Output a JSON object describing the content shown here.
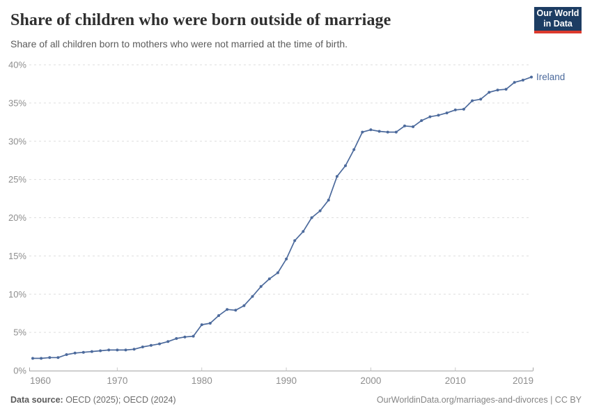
{
  "logo": {
    "line1": "Our World",
    "line2": "in Data",
    "bg_color": "#1d3d63",
    "accent_color": "#dc3a2e"
  },
  "footer": {
    "source_label": "Data source:",
    "source_value": " OECD (2025); OECD (2024)",
    "right_text": "OurWorldinData.org/marriages-and-divorces | CC BY"
  },
  "chart_data": {
    "type": "line",
    "title": "Share of children who were born outside of marriage",
    "subtitle": "Share of all children born to mothers who were not married at the time of birth.",
    "xlabel": "",
    "ylabel": "",
    "xlim": [
      1960,
      2019
    ],
    "ylim": [
      0,
      40
    ],
    "yticks": [
      0,
      5,
      10,
      15,
      20,
      25,
      30,
      35,
      40
    ],
    "ytick_suffix": "%",
    "xticks": [
      1960,
      1970,
      1980,
      1990,
      2000,
      2010,
      2019
    ],
    "grid": "horizontal-dashed",
    "legend_position": "end-of-line-label",
    "colors": {
      "line": "#4c6a9c",
      "grid": "#dddddd",
      "axis": "#a5a5a5",
      "tick": "#c8c8c8",
      "axis_text": "#8e8e8e"
    },
    "x": [
      1960,
      1961,
      1962,
      1963,
      1964,
      1965,
      1966,
      1967,
      1968,
      1969,
      1970,
      1971,
      1972,
      1973,
      1974,
      1975,
      1976,
      1977,
      1978,
      1979,
      1980,
      1981,
      1982,
      1983,
      1984,
      1985,
      1986,
      1987,
      1988,
      1989,
      1990,
      1991,
      1992,
      1993,
      1994,
      1995,
      1996,
      1997,
      1998,
      1999,
      2000,
      2001,
      2002,
      2003,
      2004,
      2005,
      2006,
      2007,
      2008,
      2009,
      2010,
      2011,
      2012,
      2013,
      2014,
      2015,
      2016,
      2017,
      2018,
      2019
    ],
    "series": [
      {
        "name": "Ireland",
        "color": "#4c6a9c",
        "values": [
          1.6,
          1.6,
          1.7,
          1.7,
          2.1,
          2.3,
          2.4,
          2.5,
          2.6,
          2.7,
          2.7,
          2.7,
          2.8,
          3.1,
          3.3,
          3.5,
          3.8,
          4.2,
          4.4,
          4.5,
          6.0,
          6.2,
          7.2,
          8.0,
          7.9,
          8.5,
          9.7,
          11.0,
          12.0,
          12.8,
          14.6,
          17.0,
          18.2,
          20.0,
          20.9,
          22.3,
          25.4,
          26.8,
          28.9,
          31.2,
          31.5,
          31.3,
          31.2,
          31.2,
          32.0,
          31.9,
          32.7,
          33.2,
          33.4,
          33.7,
          34.1,
          34.2,
          35.3,
          35.5,
          36.4,
          36.7,
          36.8,
          37.7,
          38.0,
          38.4
        ]
      }
    ]
  }
}
